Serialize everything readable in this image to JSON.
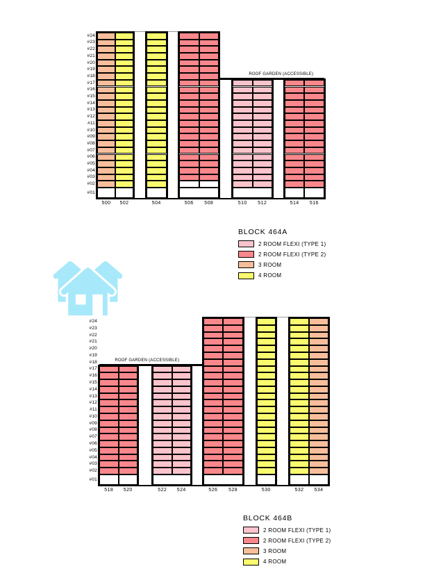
{
  "page": {
    "background": "#ffffff"
  },
  "unit_colors": {
    "2rf1": "#FBC3CB",
    "2rf2": "#F9878B",
    "3room": "#F8BE9B",
    "4room": "#FAFA6E"
  },
  "floor_labels": [
    "#01",
    "#02",
    "#03",
    "#04",
    "#05",
    "#06",
    "#07",
    "#08",
    "#09",
    "#10",
    "#11",
    "#12",
    "#13",
    "#14",
    "#15",
    "#16",
    "#17",
    "#18",
    "#19",
    "#20",
    "#21",
    "#22",
    "#23",
    "#24"
  ],
  "house_icon": {
    "name": "houses-icon",
    "color": "#A7E9FA"
  },
  "blocks": [
    {
      "id": "A",
      "roof_garden_label": "ROOF GARDEN (ACCESSIBLE)",
      "towers": [
        {
          "top_floor": 24,
          "colored_from": 2,
          "ground_divider": true,
          "columns": [
            {
              "unit": "500",
              "type": "3room"
            },
            {
              "unit": "502",
              "type": "4room"
            }
          ]
        },
        {
          "top_floor": 24,
          "colored_from": 2,
          "ground_divider": false,
          "columns": [
            {
              "unit": "504",
              "type": "4room"
            }
          ]
        },
        {
          "top_floor": 24,
          "colored_from": 3,
          "white_from": 2,
          "ground_divider": false,
          "columns": [
            {
              "unit": "506",
              "type": "2rf2"
            },
            {
              "unit": "508",
              "type": "2rf2"
            }
          ]
        },
        {
          "top_floor": 17,
          "colored_from": 2,
          "ground_divider": false,
          "columns": [
            {
              "unit": "510",
              "type": "2rf1"
            },
            {
              "unit": "512",
              "type": "2rf1"
            }
          ]
        },
        {
          "top_floor": 17,
          "colored_from": 2,
          "ground_divider": true,
          "columns": [
            {
              "unit": "514",
              "type": "2rf2"
            },
            {
              "unit": "516",
              "type": "2rf2"
            }
          ]
        }
      ],
      "legend": {
        "title": "BLOCK 464A",
        "items": [
          {
            "type": "2rf1",
            "label": "2 ROOM FLEXI (TYPE 1)"
          },
          {
            "type": "2rf2",
            "label": "2 ROOM FLEXI (TYPE 2)"
          },
          {
            "type": "3room",
            "label": "3 ROOM"
          },
          {
            "type": "4room",
            "label": "4 ROOM"
          }
        ]
      }
    },
    {
      "id": "B",
      "roof_garden_label": "ROOF GARDEN (ACCESSIBLE)",
      "towers": [
        {
          "top_floor": 17,
          "colored_from": 2,
          "ground_divider": true,
          "columns": [
            {
              "unit": "518",
              "type": "2rf2"
            },
            {
              "unit": "520",
              "type": "2rf2"
            }
          ]
        },
        {
          "top_floor": 17,
          "colored_from": 2,
          "ground_divider": false,
          "columns": [
            {
              "unit": "522",
              "type": "2rf1"
            },
            {
              "unit": "524",
              "type": "2rf1"
            }
          ]
        },
        {
          "top_floor": 24,
          "colored_from": 2,
          "ground_divider": false,
          "columns": [
            {
              "unit": "526",
              "type": "2rf2"
            },
            {
              "unit": "528",
              "type": "2rf2"
            }
          ]
        },
        {
          "top_floor": 24,
          "colored_from": 2,
          "ground_divider": false,
          "columns": [
            {
              "unit": "530",
              "type": "4room"
            }
          ]
        },
        {
          "top_floor": 24,
          "colored_from": 2,
          "ground_divider": true,
          "columns": [
            {
              "unit": "532",
              "type": "4room"
            },
            {
              "unit": "534",
              "type": "3room"
            }
          ]
        }
      ],
      "legend": {
        "title": "BLOCK 464B",
        "items": [
          {
            "type": "2rf1",
            "label": "2 ROOM FLEXI (TYPE 1)"
          },
          {
            "type": "2rf2",
            "label": "2 ROOM FLEXI (TYPE 2)"
          },
          {
            "type": "3room",
            "label": "3 ROOM"
          },
          {
            "type": "4room",
            "label": "4 ROOM"
          }
        ]
      }
    }
  ]
}
